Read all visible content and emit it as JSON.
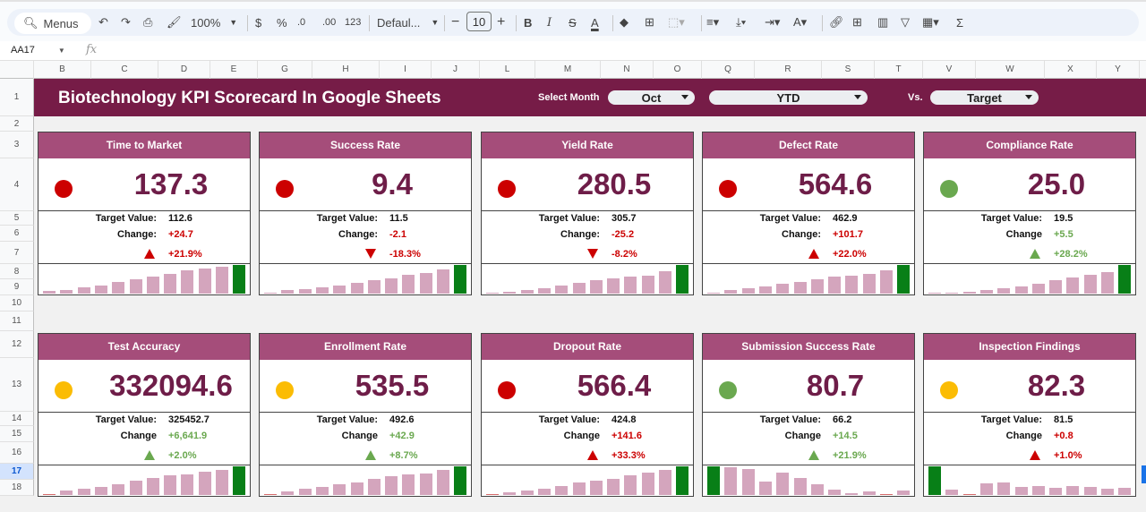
{
  "toolbar": {
    "search_label": "Menus",
    "zoom": "100%",
    "currency": "$",
    "percent": "%",
    "dec_decrease": ".0",
    "dec_increase": ".00",
    "number_format": "123",
    "font": "Defaul...",
    "font_size": "10",
    "bold": "B",
    "italic": "I",
    "sigma": "Σ"
  },
  "formula_bar": {
    "cell_ref": "AA17",
    "fx": "fx"
  },
  "columns": [
    "B",
    "C",
    "D",
    "E",
    "G",
    "H",
    "I",
    "J",
    "L",
    "M",
    "N",
    "O",
    "Q",
    "R",
    "S",
    "T",
    "V",
    "W",
    "X",
    "Y"
  ],
  "rows": [
    "1",
    "2",
    "3",
    "4",
    "5",
    "6",
    "7",
    "8",
    "9",
    "10",
    "11",
    "12",
    "13",
    "14",
    "15",
    "16",
    "17",
    "18"
  ],
  "header": {
    "title": "Biotechnology KPI Scorecard In Google Sheets",
    "select_month_label": "Select Month",
    "month": "Oct",
    "period": "YTD",
    "vs_label": "Vs.",
    "comparison": "Target"
  },
  "labels": {
    "target": "Target Value:"
  },
  "colors": {
    "title_bg": "#761c47",
    "card_header": "#a54d7a",
    "value_text": "#6e1d48",
    "red": "#cc0000",
    "green": "#6aa84f",
    "amber": "#fbbc04",
    "bar": "#d4a5bd",
    "bar_highlight": "#087f17"
  },
  "cards": [
    {
      "name": "Time to Market",
      "value": "137.3",
      "status": "red",
      "target": "112.6",
      "change_label": "Change:",
      "change": "+24.7",
      "pct": "+21.9%",
      "dir": "up",
      "tone": "red",
      "bars": [
        4,
        6,
        11,
        14,
        20,
        25,
        30,
        34,
        40,
        44,
        47,
        50
      ],
      "hi": 11
    },
    {
      "name": "Success Rate",
      "value": "9.4",
      "status": "red",
      "target": "11.5",
      "change_label": "Change:",
      "change": "-2.1",
      "pct": "-18.3%",
      "dir": "down",
      "tone": "red",
      "bars": [
        2,
        5,
        7,
        10,
        13,
        17,
        21,
        24,
        29,
        33,
        38,
        45
      ],
      "hi": 11
    },
    {
      "name": "Yield Rate",
      "value": "280.5",
      "status": "red",
      "target": "305.7",
      "change_label": "Change:",
      "change": "-25.2",
      "pct": "-8.2%",
      "dir": "down",
      "tone": "red",
      "bars": [
        2,
        3,
        5,
        8,
        13,
        17,
        20,
        23,
        26,
        28,
        34,
        44
      ],
      "hi": 11
    },
    {
      "name": "Defect Rate",
      "value": "564.6",
      "status": "red",
      "target": "462.9",
      "change_label": "Change:",
      "change": "+101.7",
      "pct": "+22.0%",
      "dir": "up",
      "tone": "red",
      "bars": [
        2,
        6,
        10,
        13,
        17,
        20,
        25,
        29,
        31,
        35,
        40,
        50
      ],
      "hi": 11
    },
    {
      "name": "Compliance Rate",
      "value": "25.0",
      "status": "green",
      "target": "19.5",
      "change_label": "Change",
      "change": "+5.5",
      "pct": "+28.2%",
      "dir": "up",
      "tone": "green",
      "bars": [
        2,
        2,
        3,
        6,
        9,
        13,
        17,
        23,
        28,
        33,
        37,
        50
      ],
      "hi": 11
    },
    {
      "name": "Test Accuracy",
      "value": "332094.6",
      "status": "amber",
      "target": "325452.7",
      "change_label": "Change",
      "change": "+6,641.9",
      "pct": "+2.0%",
      "dir": "up",
      "tone": "green",
      "bars": [
        1,
        7,
        10,
        14,
        19,
        24,
        29,
        33,
        35,
        40,
        43,
        49
      ],
      "hi": 11
    },
    {
      "name": "Enrollment Rate",
      "value": "535.5",
      "status": "amber",
      "target": "492.6",
      "change_label": "Change",
      "change": "+42.9",
      "pct": "+8.7%",
      "dir": "up",
      "tone": "green",
      "bars": [
        1,
        6,
        10,
        13,
        17,
        19,
        26,
        29,
        32,
        34,
        39,
        45
      ],
      "hi": 11
    },
    {
      "name": "Dropout Rate",
      "value": "566.4",
      "status": "red",
      "target": "424.8",
      "change_label": "Change",
      "change": "+141.6",
      "pct": "+33.3%",
      "dir": "up",
      "tone": "red",
      "bars": [
        1,
        4,
        7,
        10,
        14,
        19,
        22,
        25,
        31,
        35,
        40,
        45
      ],
      "hi": 11
    },
    {
      "name": "Submission Success Rate",
      "value": "80.7",
      "status": "green",
      "target": "66.2",
      "change_label": "Change",
      "change": "+14.5",
      "pct": "+21.9%",
      "dir": "up",
      "tone": "green",
      "bars": [
        50,
        49,
        46,
        24,
        39,
        30,
        18,
        10,
        3,
        6,
        1,
        8
      ],
      "hi": 0
    },
    {
      "name": "Inspection Findings",
      "value": "82.3",
      "status": "amber",
      "target": "81.5",
      "change_label": "Change",
      "change": "+0.8",
      "pct": "+1.0%",
      "dir": "up",
      "tone": "red",
      "bars": [
        50,
        9,
        1,
        21,
        22,
        14,
        15,
        13,
        16,
        14,
        11,
        12
      ],
      "hi": 0
    }
  ]
}
